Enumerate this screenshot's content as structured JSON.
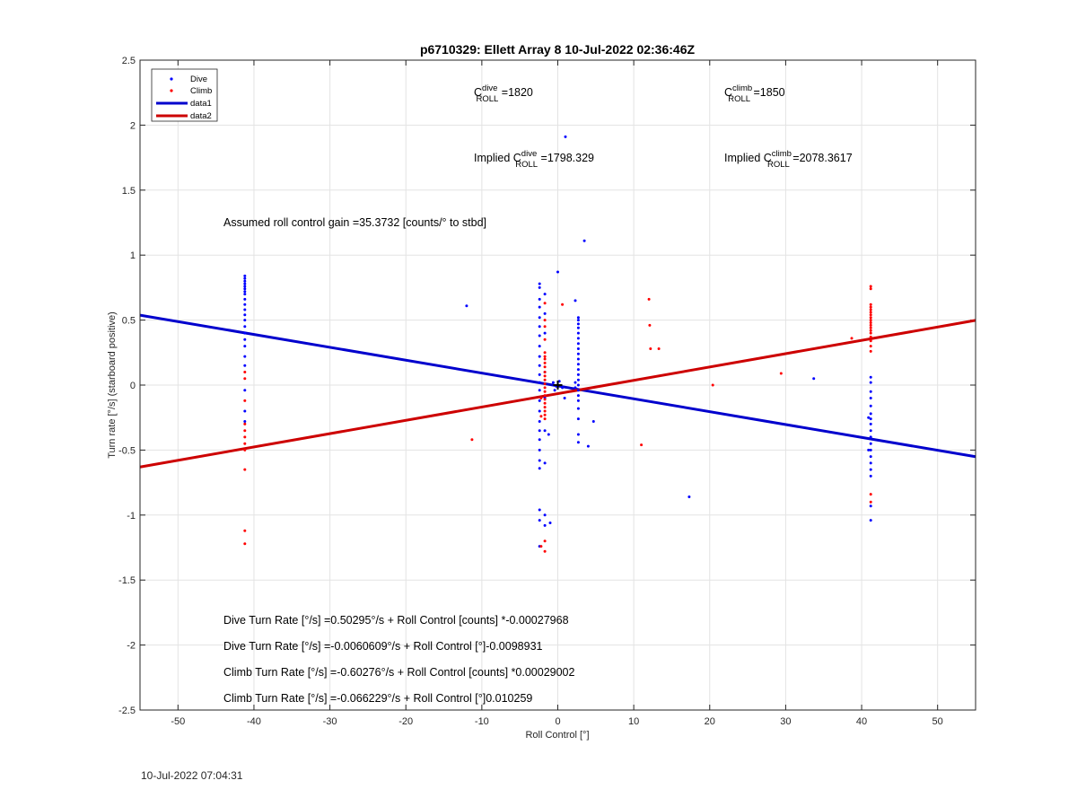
{
  "chart_data": {
    "type": "scatter",
    "title": "p6710329: Ellett Array 8 10-Jul-2022 02:36:46Z",
    "xlabel": "Roll Control [°]",
    "ylabel": "Turn rate [°/s] (starboard positive)",
    "xlim": [
      -55,
      55
    ],
    "ylim": [
      -2.5,
      2.5
    ],
    "xticks": [
      -50,
      -40,
      -30,
      -20,
      -10,
      0,
      10,
      20,
      30,
      40,
      50
    ],
    "yticks": [
      -2.5,
      -2,
      -1.5,
      -1,
      -0.5,
      0,
      0.5,
      1,
      1.5,
      2,
      2.5
    ],
    "ytick_labels": [
      "-2.5",
      "-2",
      "-1.5",
      "-1",
      "-0.5",
      "0",
      "0.5",
      "1",
      "1.5",
      "2",
      "2.5"
    ],
    "grid": true,
    "legend_position": "top-left",
    "legend": [
      {
        "label": "Dive",
        "kind": "marker",
        "color": "#0000ff"
      },
      {
        "label": "Climb",
        "kind": "marker",
        "color": "#ff0000"
      },
      {
        "label": "data1",
        "kind": "line",
        "color": "#0000cd"
      },
      {
        "label": "data2",
        "kind": "line",
        "color": "#cd0000"
      }
    ],
    "series": [
      {
        "name": "Dive",
        "color": "#0000ff",
        "points": [
          [
            -41.2,
            0.84
          ],
          [
            -41.2,
            0.82
          ],
          [
            -41.2,
            0.8
          ],
          [
            -41.2,
            0.78
          ],
          [
            -41.2,
            0.76
          ],
          [
            -41.2,
            0.74
          ],
          [
            -41.2,
            0.72
          ],
          [
            -41.2,
            0.7
          ],
          [
            -41.2,
            0.66
          ],
          [
            -41.2,
            0.62
          ],
          [
            -41.2,
            0.58
          ],
          [
            -41.2,
            0.54
          ],
          [
            -41.2,
            0.5
          ],
          [
            -41.2,
            0.45
          ],
          [
            -41.2,
            0.4
          ],
          [
            -41.2,
            0.35
          ],
          [
            -41.2,
            0.3
          ],
          [
            -41.2,
            0.22
          ],
          [
            -41.2,
            0.15
          ],
          [
            -41.2,
            -0.04
          ],
          [
            -41.2,
            -0.2
          ],
          [
            -41.2,
            -0.28
          ],
          [
            -12,
            0.61
          ],
          [
            0,
            0.87
          ],
          [
            1,
            1.91
          ],
          [
            3.5,
            1.11
          ],
          [
            -2.4,
            0.78
          ],
          [
            -2.4,
            0.75
          ],
          [
            -2.4,
            0.66
          ],
          [
            -2.4,
            0.6
          ],
          [
            -2.4,
            0.52
          ],
          [
            -2.4,
            0.45
          ],
          [
            -2.4,
            0.38
          ],
          [
            -2.4,
            0.3
          ],
          [
            -2.4,
            0.22
          ],
          [
            -2.4,
            0.15
          ],
          [
            -2.4,
            0.08
          ],
          [
            -2.4,
            0.02
          ],
          [
            -2.4,
            -0.04
          ],
          [
            -2.4,
            -0.12
          ],
          [
            -2.4,
            -0.2
          ],
          [
            -2.4,
            -0.28
          ],
          [
            -2.4,
            -0.35
          ],
          [
            -2.4,
            -0.42
          ],
          [
            -2.4,
            -0.5
          ],
          [
            -2.4,
            -0.58
          ],
          [
            -2.4,
            -0.64
          ],
          [
            -2.4,
            -0.96
          ],
          [
            -2.4,
            -1.04
          ],
          [
            -2.4,
            -1.24
          ],
          [
            -1.7,
            0.7
          ],
          [
            -1.7,
            0.55
          ],
          [
            -1.7,
            0.4
          ],
          [
            -1.7,
            0.1
          ],
          [
            -1.7,
            -0.1
          ],
          [
            -1.7,
            -0.35
          ],
          [
            -1.7,
            -0.6
          ],
          [
            -1.7,
            -1.0
          ],
          [
            -1.7,
            -1.08
          ],
          [
            -1,
            -1.06
          ],
          [
            -1.2,
            -0.38
          ],
          [
            2.3,
            0.65
          ],
          [
            2.3,
            0.02
          ],
          [
            2.3,
            -0.02
          ],
          [
            2.7,
            0.52
          ],
          [
            2.7,
            0.5
          ],
          [
            2.7,
            0.47
          ],
          [
            2.7,
            0.44
          ],
          [
            2.7,
            0.4
          ],
          [
            2.7,
            0.36
          ],
          [
            2.7,
            0.32
          ],
          [
            2.7,
            0.28
          ],
          [
            2.7,
            0.24
          ],
          [
            2.7,
            0.2
          ],
          [
            2.7,
            0.16
          ],
          [
            2.7,
            0.12
          ],
          [
            2.7,
            0.08
          ],
          [
            2.7,
            0.04
          ],
          [
            2.7,
            0.0
          ],
          [
            2.7,
            -0.04
          ],
          [
            2.7,
            -0.08
          ],
          [
            2.7,
            -0.12
          ],
          [
            2.7,
            -0.18
          ],
          [
            2.7,
            -0.26
          ],
          [
            2.7,
            -0.38
          ],
          [
            2.7,
            -0.44
          ],
          [
            -0.6,
            0.02
          ],
          [
            -0.2,
            -0.01
          ],
          [
            0.2,
            0.03
          ],
          [
            0.6,
            -0.02
          ],
          [
            -0.4,
            -0.04
          ],
          [
            0.9,
            -0.1
          ],
          [
            4,
            -0.47
          ],
          [
            4.7,
            -0.28
          ],
          [
            17.3,
            -0.86
          ],
          [
            33.7,
            0.05
          ],
          [
            41.2,
            0.06
          ],
          [
            41.2,
            0.02
          ],
          [
            41.2,
            -0.05
          ],
          [
            41.2,
            -0.1
          ],
          [
            41.2,
            -0.16
          ],
          [
            41.2,
            -0.22
          ],
          [
            41.2,
            -0.26
          ],
          [
            41.2,
            -0.3
          ],
          [
            41.2,
            -0.35
          ],
          [
            41.2,
            -0.4
          ],
          [
            41.2,
            -0.45
          ],
          [
            41.2,
            -0.5
          ],
          [
            41.2,
            -0.55
          ],
          [
            41.2,
            -0.6
          ],
          [
            41.2,
            -0.65
          ],
          [
            41.2,
            -0.7
          ],
          [
            41.2,
            -0.93
          ],
          [
            41.2,
            -1.04
          ],
          [
            40.9,
            -0.25
          ],
          [
            40.9,
            -0.5
          ]
        ]
      },
      {
        "name": "Climb",
        "color": "#ff0000",
        "points": [
          [
            -41.2,
            0.1
          ],
          [
            -41.2,
            0.05
          ],
          [
            -41.2,
            -0.12
          ],
          [
            -41.2,
            -0.3
          ],
          [
            -41.2,
            -0.35
          ],
          [
            -41.2,
            -0.4
          ],
          [
            -41.2,
            -0.45
          ],
          [
            -41.2,
            -0.5
          ],
          [
            -41.2,
            -0.65
          ],
          [
            -41.2,
            -1.12
          ],
          [
            -41.2,
            -1.22
          ],
          [
            -11.3,
            -0.42
          ],
          [
            0.6,
            0.62
          ],
          [
            -1.7,
            0.63
          ],
          [
            -1.7,
            0.5
          ],
          [
            -1.7,
            0.45
          ],
          [
            -1.7,
            0.35
          ],
          [
            -1.7,
            0.25
          ],
          [
            -1.7,
            0.22
          ],
          [
            -1.7,
            0.2
          ],
          [
            -1.7,
            0.17
          ],
          [
            -1.7,
            0.14
          ],
          [
            -1.7,
            0.1
          ],
          [
            -1.7,
            0.07
          ],
          [
            -1.7,
            0.04
          ],
          [
            -1.7,
            0.01
          ],
          [
            -1.7,
            -0.02
          ],
          [
            -1.7,
            -0.05
          ],
          [
            -1.7,
            -0.08
          ],
          [
            -1.7,
            -0.11
          ],
          [
            -1.7,
            -0.14
          ],
          [
            -1.7,
            -0.17
          ],
          [
            -1.7,
            -0.2
          ],
          [
            -1.7,
            -0.23
          ],
          [
            -1.7,
            -0.26
          ],
          [
            -1.7,
            -1.2
          ],
          [
            -1.7,
            -1.28
          ],
          [
            -2.2,
            -0.1
          ],
          [
            -2.2,
            -0.24
          ],
          [
            -2.2,
            -1.24
          ],
          [
            11,
            -0.46
          ],
          [
            12,
            0.66
          ],
          [
            12.1,
            0.46
          ],
          [
            12.2,
            0.28
          ],
          [
            13.3,
            0.28
          ],
          [
            20.4,
            0.0
          ],
          [
            29.4,
            0.09
          ],
          [
            38.7,
            0.36
          ],
          [
            41.2,
            0.76
          ],
          [
            41.2,
            0.74
          ],
          [
            41.2,
            0.62
          ],
          [
            41.2,
            0.6
          ],
          [
            41.2,
            0.58
          ],
          [
            41.2,
            0.56
          ],
          [
            41.2,
            0.54
          ],
          [
            41.2,
            0.52
          ],
          [
            41.2,
            0.5
          ],
          [
            41.2,
            0.48
          ],
          [
            41.2,
            0.46
          ],
          [
            41.2,
            0.44
          ],
          [
            41.2,
            0.42
          ],
          [
            41.2,
            0.4
          ],
          [
            41.2,
            0.37
          ],
          [
            41.2,
            0.34
          ],
          [
            41.2,
            0.3
          ],
          [
            41.2,
            0.26
          ],
          [
            41.2,
            -0.84
          ],
          [
            41.2,
            -0.9
          ]
        ]
      }
    ],
    "lines": [
      {
        "name": "data1",
        "color": "#0000cd",
        "x": [
          -55,
          55
        ],
        "y": [
          0.538,
          -0.551
        ]
      },
      {
        "name": "data2",
        "color": "#cd0000",
        "x": [
          -55,
          55
        ],
        "y": [
          -0.63,
          0.498
        ]
      }
    ],
    "center_marker": {
      "x": 0,
      "y": 0
    }
  },
  "annotations": {
    "c_dive_prefix": "C",
    "c_dive_sup": "dive",
    "c_dive_sub": "ROLL",
    "c_dive_value": " =1820",
    "c_climb_prefix": "C",
    "c_climb_sup": "climb",
    "c_climb_sub": "ROLL",
    "c_climb_value": " =1850",
    "implied_dive_prefix": "Implied C",
    "implied_dive_sup": "dive",
    "implied_dive_sub": "ROLL",
    "implied_dive_value": " =1798.329",
    "implied_climb_prefix": "Implied C",
    "implied_climb_sup": "climb",
    "implied_climb_sub": "ROLL",
    "implied_climb_value": " =2078.3617",
    "gain": "Assumed roll control gain =35.3732 [counts/° to stbd]",
    "eq1": "Dive Turn Rate [°/s] =0.50295°/s + Roll Control [counts] *-0.00027968",
    "eq2": "Dive Turn Rate [°/s] =-0.0060609°/s + Roll Control [°]-0.0098931",
    "eq3": "Climb Turn Rate [°/s] =-0.60276°/s + Roll Control [counts] *0.00029002",
    "eq4": "Climb Turn Rate [°/s] =-0.066229°/s + Roll Control [°]0.010259"
  },
  "footer": {
    "timestamp": "10-Jul-2022 07:04:31"
  }
}
